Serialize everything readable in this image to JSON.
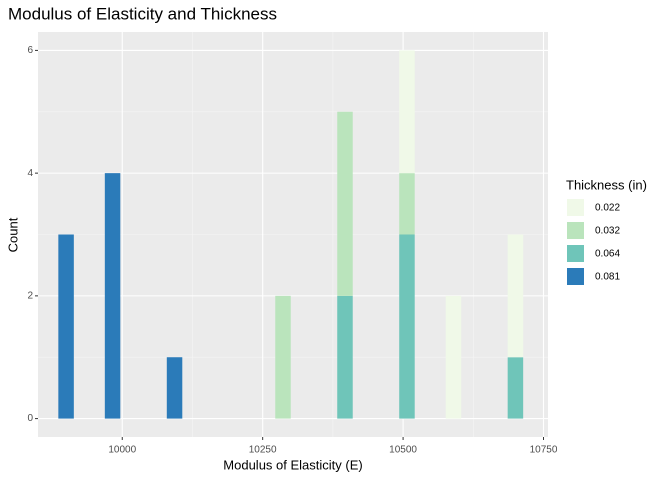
{
  "chart_data": {
    "type": "histogram",
    "title": "Modulus of Elasticity and Thickness",
    "x_label": "Modulus of Elasticity (E)",
    "y_label": "Count",
    "legend_title": "Thickness (in)",
    "bins": [
      9886.21,
      9913.79,
      9941.38,
      9968.97,
      9996.55,
      10024.14,
      10051.72,
      10079.31,
      10106.9,
      10134.48,
      10162.07,
      10189.66,
      10217.24,
      10244.83,
      10272.41,
      10300,
      10327.59,
      10355.17,
      10382.76,
      10410.34,
      10437.93,
      10465.52,
      10493.1,
      10520.69,
      10548.28,
      10575.86,
      10603.45,
      10631.03,
      10658.62,
      10686.21,
      10713.79
    ],
    "series": [
      {
        "name": "0.022",
        "color": "#f0f9e8",
        "values": [
          0,
          0,
          0,
          0,
          0,
          0,
          0,
          0,
          0,
          0,
          0,
          0,
          0,
          0,
          0,
          0,
          0,
          0,
          0,
          0,
          0,
          0,
          2,
          0,
          0,
          2,
          0,
          0,
          0,
          2
        ]
      },
      {
        "name": "0.032",
        "color": "#bae4bc",
        "values": [
          0,
          0,
          0,
          0,
          0,
          0,
          0,
          0,
          0,
          0,
          0,
          0,
          0,
          0,
          2,
          0,
          0,
          0,
          3,
          0,
          0,
          0,
          1,
          0,
          0,
          0,
          0,
          0,
          0,
          0
        ]
      },
      {
        "name": "0.064",
        "color": "#6fc5b9",
        "values": [
          0,
          0,
          0,
          0,
          0,
          0,
          0,
          0,
          0,
          0,
          0,
          0,
          0,
          0,
          0,
          0,
          0,
          0,
          2,
          0,
          0,
          0,
          3,
          0,
          0,
          0,
          0,
          0,
          0,
          1
        ]
      },
      {
        "name": "0.081",
        "color": "#2b7bb9",
        "values": [
          3,
          0,
          0,
          4,
          0,
          0,
          0,
          1,
          0,
          0,
          0,
          0,
          0,
          0,
          0,
          0,
          0,
          0,
          0,
          0,
          0,
          0,
          0,
          0,
          0,
          0,
          0,
          0,
          0,
          0
        ]
      }
    ],
    "xlim": [
      9850,
      10758
    ],
    "xticks": [
      10000,
      10250,
      10500,
      10750
    ],
    "ylim": [
      -0.3,
      6.3
    ],
    "yticks": [
      0,
      2,
      4,
      6
    ],
    "grid": true,
    "legend": "right"
  }
}
